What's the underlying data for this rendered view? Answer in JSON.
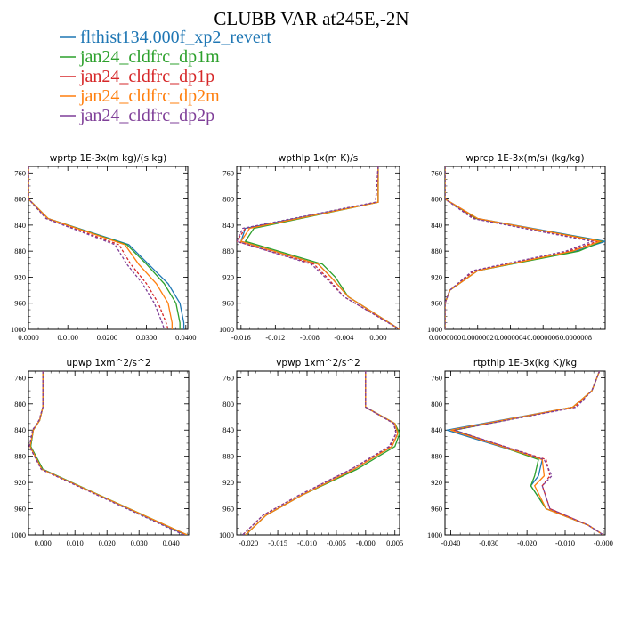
{
  "figure": {
    "title": "CLUBB VAR at245E,-2N",
    "legend": [
      {
        "label": "flthist134.000f_xp2_revert",
        "color": "#1f77b4"
      },
      {
        "label": "jan24_cldfrc_dp1m",
        "color": "#2ca02c"
      },
      {
        "label": "jan24_cldfrc_dp1p",
        "color": "#d62728"
      },
      {
        "label": "jan24_cldfrc_dp2m",
        "color": "#ff7f0e"
      },
      {
        "label": "jan24_cldfrc_dp2p",
        "color": "#7f3f98"
      }
    ]
  },
  "chart_data": [
    {
      "type": "line",
      "title": "wprtp  1E-3x(m kg)/(s kg)",
      "xlim": [
        0.0,
        0.0405
      ],
      "ylim": [
        750,
        1000
      ],
      "xticks": [
        0.0,
        0.01,
        0.02,
        0.03,
        0.04
      ],
      "xtick_labels": [
        "0.0000",
        "0.0100",
        "0.0200",
        "0.0300",
        "0.0400"
      ],
      "yticks": [
        760,
        800,
        840,
        880,
        920,
        960,
        1000
      ],
      "ytick_labels": [
        "760",
        "800",
        "840",
        "880",
        "920",
        "960",
        "1000"
      ],
      "pressure": [
        750,
        800,
        830,
        870,
        900,
        930,
        960,
        990,
        1000
      ],
      "series": [
        {
          "values": [
            0.0,
            0.0,
            0.005,
            0.0255,
            0.0305,
            0.0355,
            0.0385,
            0.0395,
            0.0395
          ]
        },
        {
          "values": [
            0.0,
            0.0,
            0.005,
            0.025,
            0.03,
            0.0345,
            0.0375,
            0.0385,
            0.0385
          ]
        },
        {
          "values": [
            0.0,
            0.0,
            0.0045,
            0.023,
            0.026,
            0.03,
            0.033,
            0.035,
            0.0355
          ]
        },
        {
          "values": [
            0.0,
            0.0,
            0.005,
            0.0245,
            0.028,
            0.0325,
            0.0355,
            0.0365,
            0.0365
          ]
        },
        {
          "values": [
            0.0,
            0.0,
            0.0045,
            0.022,
            0.025,
            0.029,
            0.032,
            0.034,
            0.0345
          ]
        }
      ]
    },
    {
      "type": "line",
      "title": "wpthlp  1x(m K)/s",
      "xlim": [
        -0.0165,
        0.0025
      ],
      "ylim": [
        750,
        1000
      ],
      "xticks": [
        -0.016,
        -0.012,
        -0.008,
        -0.004,
        0.0
      ],
      "xtick_labels": [
        "-0.016",
        "-0.012",
        "-0.008",
        "-0.004",
        "0.000"
      ],
      "yticks": [
        760,
        800,
        840,
        880,
        920,
        960,
        1000
      ],
      "ytick_labels": [
        "760",
        "800",
        "840",
        "880",
        "920",
        "960",
        "1000"
      ],
      "pressure": [
        750,
        805,
        845,
        865,
        900,
        920,
        950,
        1000
      ],
      "series": [
        {
          "values": [
            0.0,
            0.0,
            -0.0155,
            -0.016,
            -0.007,
            -0.0055,
            -0.0035,
            0.0025
          ]
        },
        {
          "values": [
            0.0,
            0.0,
            -0.0145,
            -0.0155,
            -0.0065,
            -0.005,
            -0.0035,
            0.0025
          ]
        },
        {
          "values": [
            0.0,
            -0.0003,
            -0.0155,
            -0.0165,
            -0.0075,
            -0.006,
            -0.004,
            0.0025
          ]
        },
        {
          "values": [
            0.0,
            0.0,
            -0.015,
            -0.016,
            -0.007,
            -0.0055,
            -0.0035,
            0.0025
          ]
        },
        {
          "values": [
            0.0,
            -0.0003,
            -0.0158,
            -0.0165,
            -0.0078,
            -0.0062,
            -0.004,
            0.0025
          ]
        }
      ]
    },
    {
      "type": "line",
      "title": "wprcp  1E-3x(m/s) (kg/kg)",
      "xlim": [
        0.0,
        9.8e-07
      ],
      "ylim": [
        750,
        1000
      ],
      "xticks": [
        0.0,
        2e-07,
        4e-07,
        6e-07,
        8e-07
      ],
      "xtick_labels": [
        "0.0000000",
        "0.0000002",
        "0.0000004",
        "0.0000006",
        "0.0000008"
      ],
      "yticks": [
        760,
        800,
        840,
        880,
        920,
        960,
        1000
      ],
      "ytick_labels": [
        "760",
        "800",
        "840",
        "880",
        "920",
        "960",
        "1000"
      ],
      "pressure": [
        750,
        800,
        830,
        865,
        880,
        910,
        940,
        960,
        1000
      ],
      "series": [
        {
          "values": [
            0.0,
            0.0,
            2e-07,
            9.8e-07,
            8e-07,
            2e-07,
            3e-08,
            0.0,
            0.0
          ]
        },
        {
          "values": [
            0.0,
            0.0,
            1.9e-07,
            9.6e-07,
            8.2e-07,
            2e-07,
            3e-08,
            0.0,
            0.0
          ]
        },
        {
          "values": [
            0.0,
            0.0,
            1.8e-07,
            9.3e-07,
            7.6e-07,
            1.8e-07,
            3e-08,
            0.0,
            0.0
          ]
        },
        {
          "values": [
            0.0,
            0.0,
            2e-07,
            9.5e-07,
            7.8e-07,
            2e-07,
            3e-08,
            0.0,
            0.0
          ]
        },
        {
          "values": [
            0.0,
            0.0,
            1.7e-07,
            9e-07,
            7.4e-07,
            1.7e-07,
            3e-08,
            0.0,
            0.0
          ]
        }
      ]
    },
    {
      "type": "line",
      "title": "upwp  1xm^2/s^2",
      "xlim": [
        -0.0045,
        0.0455
      ],
      "ylim": [
        750,
        1000
      ],
      "xticks": [
        0.0,
        0.01,
        0.02,
        0.03,
        0.04
      ],
      "xtick_labels": [
        "0.000",
        "0.010",
        "0.020",
        "0.030",
        "0.040"
      ],
      "yticks": [
        760,
        800,
        840,
        880,
        920,
        960,
        1000
      ],
      "ytick_labels": [
        "760",
        "800",
        "840",
        "880",
        "920",
        "960",
        "1000"
      ],
      "pressure": [
        750,
        805,
        825,
        840,
        865,
        900,
        1000
      ],
      "series": [
        {
          "values": [
            0.0,
            0.0,
            -0.001,
            -0.003,
            -0.0038,
            0.0,
            0.0445
          ]
        },
        {
          "values": [
            0.0,
            0.0,
            -0.001,
            -0.003,
            -0.0038,
            0.0,
            0.045
          ]
        },
        {
          "values": [
            0.0,
            0.0,
            -0.0012,
            -0.0032,
            -0.0042,
            -0.0005,
            0.0445
          ]
        },
        {
          "values": [
            0.0,
            0.0,
            -0.001,
            -0.003,
            -0.004,
            -0.0003,
            0.045
          ]
        },
        {
          "values": [
            0.0,
            0.0,
            -0.0012,
            -0.0032,
            -0.0042,
            -0.0005,
            0.044
          ]
        }
      ]
    },
    {
      "type": "line",
      "title": "vpwp  1xm^2/s^2",
      "xlim": [
        -0.022,
        0.0058
      ],
      "ylim": [
        750,
        1000
      ],
      "xticks": [
        -0.02,
        -0.015,
        -0.01,
        -0.005,
        0.0,
        0.005
      ],
      "xtick_labels": [
        "-0.020",
        "-0.015",
        "-0.010",
        "-0.005",
        "-0.000",
        "0.005"
      ],
      "yticks": [
        760,
        800,
        840,
        880,
        920,
        960,
        1000
      ],
      "ytick_labels": [
        "760",
        "800",
        "840",
        "880",
        "920",
        "960",
        "1000"
      ],
      "pressure": [
        750,
        805,
        830,
        845,
        865,
        900,
        940,
        970,
        1000
      ],
      "series": [
        {
          "values": [
            0.0,
            0.0,
            0.005,
            0.0055,
            0.0045,
            -0.002,
            -0.011,
            -0.017,
            -0.0205
          ]
        },
        {
          "values": [
            0.0,
            0.0,
            0.005,
            0.0058,
            0.005,
            -0.0015,
            -0.011,
            -0.017,
            -0.0205
          ]
        },
        {
          "values": [
            0.0,
            0.0,
            0.0048,
            0.0052,
            0.0042,
            -0.0025,
            -0.0115,
            -0.0175,
            -0.021
          ]
        },
        {
          "values": [
            0.0,
            0.0,
            0.005,
            0.0055,
            0.0045,
            -0.002,
            -0.011,
            -0.017,
            -0.0205
          ]
        },
        {
          "values": [
            0.0,
            0.0,
            0.0048,
            0.0052,
            0.004,
            -0.0025,
            -0.0115,
            -0.0175,
            -0.021
          ]
        }
      ]
    },
    {
      "type": "line",
      "title": "rtpthlp  1E-3x(kg K)/kg",
      "xlim": [
        -0.0415,
        0.0005
      ],
      "ylim": [
        750,
        1000
      ],
      "xticks": [
        -0.04,
        -0.03,
        -0.02,
        -0.01,
        0.0
      ],
      "xtick_labels": [
        "-0.040",
        "-0.030",
        "-0.020",
        "-0.010",
        "-0.000"
      ],
      "yticks": [
        760,
        800,
        840,
        880,
        920,
        960,
        1000
      ],
      "ytick_labels": [
        "760",
        "800",
        "840",
        "880",
        "920",
        "960",
        "1000"
      ],
      "pressure": [
        750,
        780,
        805,
        840,
        885,
        910,
        925,
        960,
        985,
        1000
      ],
      "series": [
        {
          "values": [
            -0.001,
            -0.003,
            -0.008,
            -0.041,
            -0.016,
            -0.017,
            -0.019,
            -0.015,
            -0.004,
            0.0
          ]
        },
        {
          "values": [
            -0.001,
            -0.003,
            -0.008,
            -0.039,
            -0.017,
            -0.018,
            -0.019,
            -0.015,
            -0.004,
            0.0
          ]
        },
        {
          "values": [
            -0.001,
            -0.003,
            -0.0075,
            -0.0395,
            -0.015,
            -0.014,
            -0.016,
            -0.014,
            -0.004,
            0.0
          ]
        },
        {
          "values": [
            -0.001,
            -0.003,
            -0.008,
            -0.04,
            -0.016,
            -0.0155,
            -0.018,
            -0.015,
            -0.004,
            0.0
          ]
        },
        {
          "values": [
            -0.001,
            -0.003,
            -0.007,
            -0.039,
            -0.0155,
            -0.0135,
            -0.016,
            -0.014,
            -0.004,
            0.0
          ]
        }
      ]
    }
  ]
}
